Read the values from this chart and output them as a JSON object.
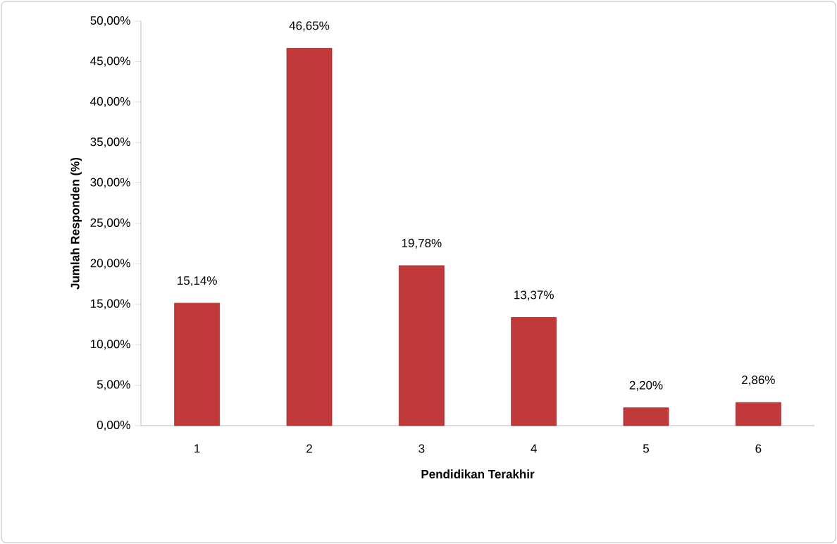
{
  "chart_data": {
    "type": "bar",
    "xlabel": "Pendidikan Terakhir",
    "ylabel": "Jumlah Responden (%)",
    "categories": [
      "1",
      "2",
      "3",
      "4",
      "5",
      "6"
    ],
    "values": [
      15.14,
      46.65,
      19.78,
      13.37,
      2.2,
      2.86
    ],
    "value_labels": [
      "15,14%",
      "46,65%",
      "19,78%",
      "13,37%",
      "2,20%",
      "2,86%"
    ],
    "color": "#c0393b",
    "ylim": [
      0,
      50
    ],
    "yticks": [
      {
        "value": 0,
        "label": "0,00%"
      },
      {
        "value": 5,
        "label": "5,00%"
      },
      {
        "value": 10,
        "label": "10,00%"
      },
      {
        "value": 15,
        "label": "15,00%"
      },
      {
        "value": 20,
        "label": "20,00%"
      },
      {
        "value": 25,
        "label": "25,00%"
      },
      {
        "value": 30,
        "label": "30,00%"
      },
      {
        "value": 35,
        "label": "35,00%"
      },
      {
        "value": 40,
        "label": "40,00%"
      },
      {
        "value": 45,
        "label": "45,00%"
      },
      {
        "value": 50,
        "label": "50,00%"
      }
    ]
  }
}
